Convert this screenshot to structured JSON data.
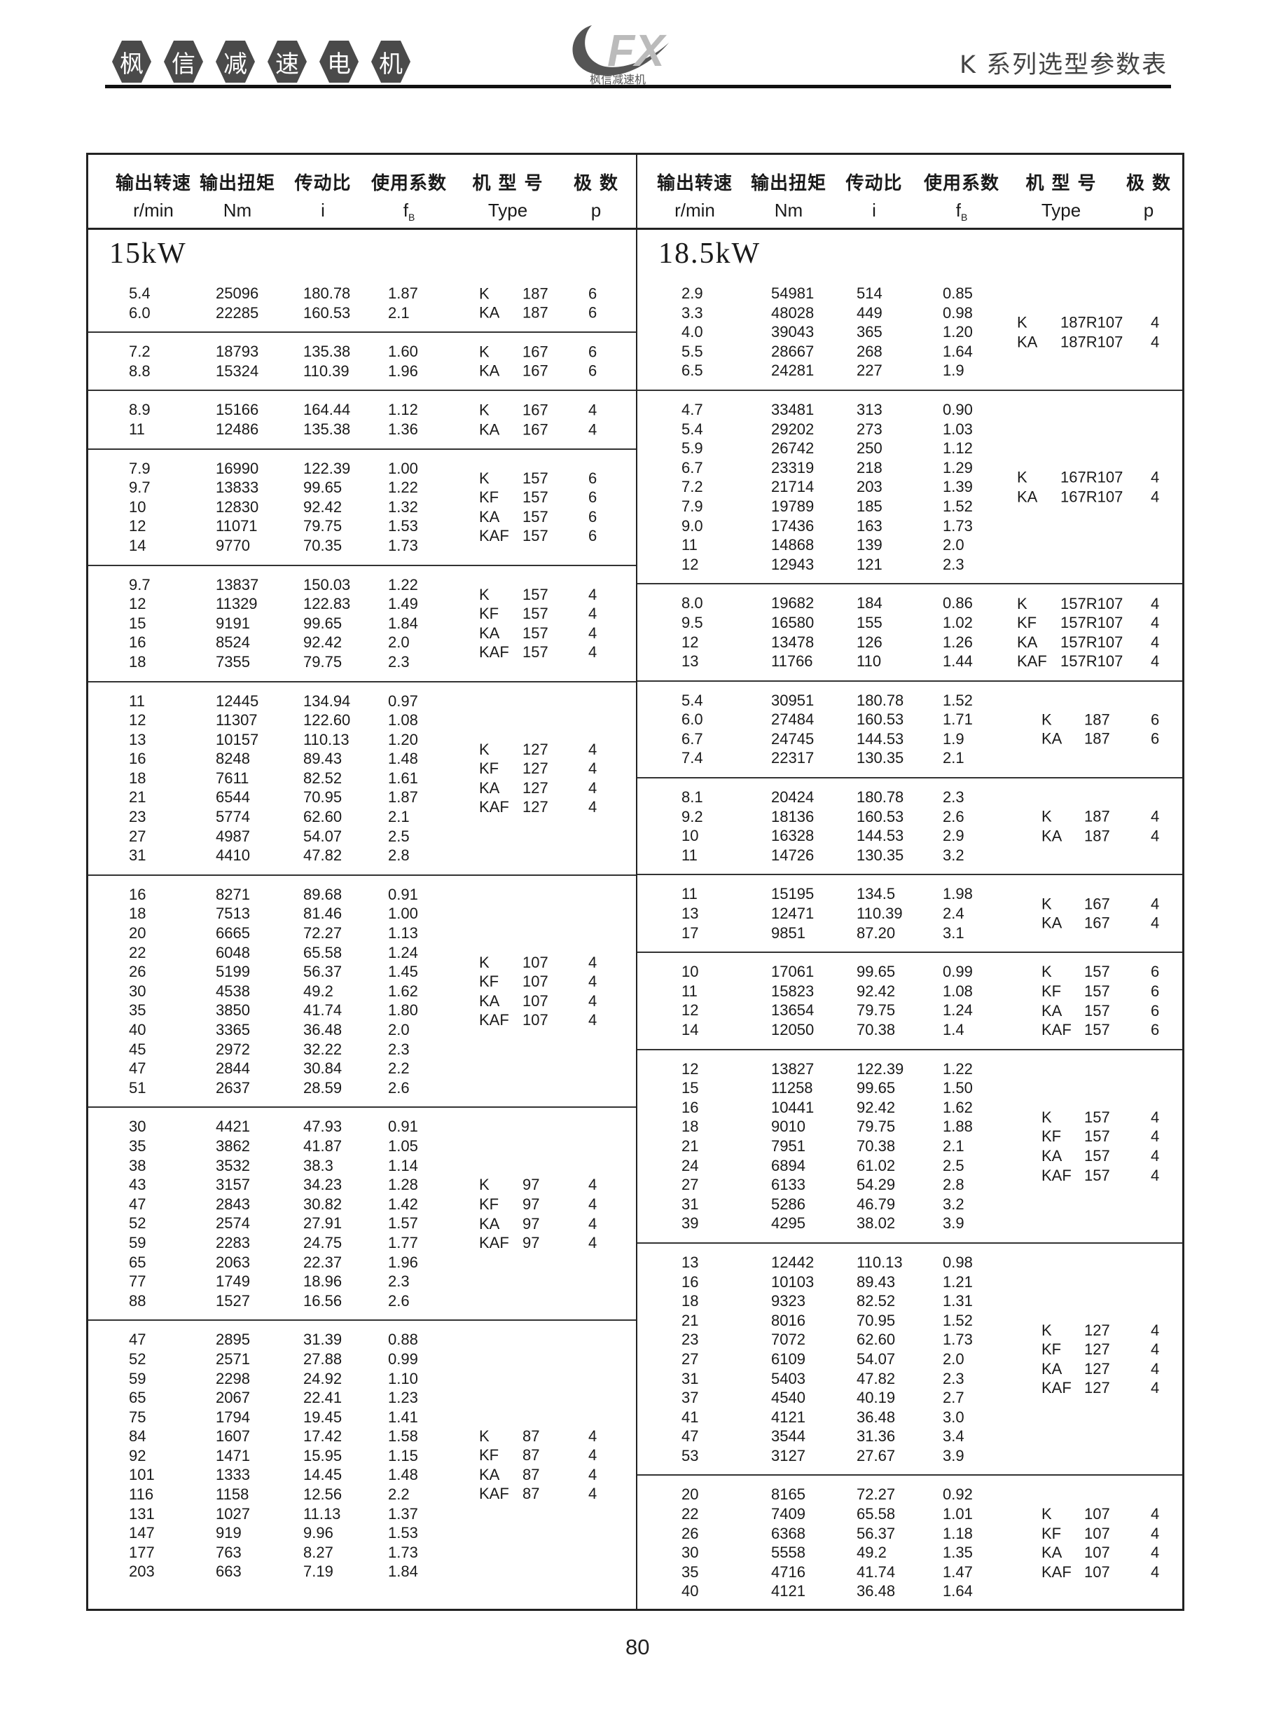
{
  "header": {
    "brand_chars": [
      "枫",
      "信",
      "减",
      "速",
      "电",
      "机"
    ],
    "logo_text": "FX",
    "logo_caption": "枫信减速机",
    "doc_title": "K 系列选型参数表"
  },
  "columns": {
    "cn": [
      "输出转速",
      "输出扭矩",
      "传动比",
      "使用系数",
      "机 型 号",
      "极 数"
    ],
    "units": [
      "r/min",
      "Nm",
      "i",
      "f",
      "Type",
      "p"
    ],
    "fb_sub": "B"
  },
  "left": {
    "title": "15kW",
    "groups": [
      {
        "rows": [
          [
            "5.4",
            "25096",
            "180.78",
            "1.87"
          ],
          [
            "6.0",
            "22285",
            "160.53",
            "2.1"
          ]
        ],
        "types": [
          [
            "K",
            "187",
            "6"
          ],
          [
            "KA",
            "187",
            "6"
          ]
        ]
      },
      {
        "rows": [
          [
            "7.2",
            "18793",
            "135.38",
            "1.60"
          ],
          [
            "8.8",
            "15324",
            "110.39",
            "1.96"
          ]
        ],
        "types": [
          [
            "K",
            "167",
            "6"
          ],
          [
            "KA",
            "167",
            "6"
          ]
        ]
      },
      {
        "rows": [
          [
            "8.9",
            "15166",
            "164.44",
            "1.12"
          ],
          [
            "11",
            "12486",
            "135.38",
            "1.36"
          ]
        ],
        "types": [
          [
            "K",
            "167",
            "4"
          ],
          [
            "KA",
            "167",
            "4"
          ]
        ]
      },
      {
        "rows": [
          [
            "7.9",
            "16990",
            "122.39",
            "1.00"
          ],
          [
            "9.7",
            "13833",
            "99.65",
            "1.22"
          ],
          [
            "10",
            "12830",
            "92.42",
            "1.32"
          ],
          [
            "12",
            "11071",
            "79.75",
            "1.53"
          ],
          [
            "14",
            "9770",
            "70.35",
            "1.73"
          ]
        ],
        "types": [
          [
            "K",
            "157",
            "6"
          ],
          [
            "KF",
            "157",
            "6"
          ],
          [
            "KA",
            "157",
            "6"
          ],
          [
            "KAF",
            "157",
            "6"
          ]
        ]
      },
      {
        "rows": [
          [
            "9.7",
            "13837",
            "150.03",
            "1.22"
          ],
          [
            "12",
            "11329",
            "122.83",
            "1.49"
          ],
          [
            "15",
            "9191",
            "99.65",
            "1.84"
          ],
          [
            "16",
            "8524",
            "92.42",
            "2.0"
          ],
          [
            "18",
            "7355",
            "79.75",
            "2.3"
          ]
        ],
        "types": [
          [
            "K",
            "157",
            "4"
          ],
          [
            "KF",
            "157",
            "4"
          ],
          [
            "KA",
            "157",
            "4"
          ],
          [
            "KAF",
            "157",
            "4"
          ]
        ]
      },
      {
        "rows": [
          [
            "11",
            "12445",
            "134.94",
            "0.97"
          ],
          [
            "12",
            "11307",
            "122.60",
            "1.08"
          ],
          [
            "13",
            "10157",
            "110.13",
            "1.20"
          ],
          [
            "16",
            "8248",
            "89.43",
            "1.48"
          ],
          [
            "18",
            "7611",
            "82.52",
            "1.61"
          ],
          [
            "21",
            "6544",
            "70.95",
            "1.87"
          ],
          [
            "23",
            "5774",
            "62.60",
            "2.1"
          ],
          [
            "27",
            "4987",
            "54.07",
            "2.5"
          ],
          [
            "31",
            "4410",
            "47.82",
            "2.8"
          ]
        ],
        "types": [
          [
            "K",
            "127",
            "4"
          ],
          [
            "KF",
            "127",
            "4"
          ],
          [
            "KA",
            "127",
            "4"
          ],
          [
            "KAF",
            "127",
            "4"
          ]
        ]
      },
      {
        "rows": [
          [
            "16",
            "8271",
            "89.68",
            "0.91"
          ],
          [
            "18",
            "7513",
            "81.46",
            "1.00"
          ],
          [
            "20",
            "6665",
            "72.27",
            "1.13"
          ],
          [
            "22",
            "6048",
            "65.58",
            "1.24"
          ],
          [
            "26",
            "5199",
            "56.37",
            "1.45"
          ],
          [
            "30",
            "4538",
            "49.2",
            "1.62"
          ],
          [
            "35",
            "3850",
            "41.74",
            "1.80"
          ],
          [
            "40",
            "3365",
            "36.48",
            "2.0"
          ],
          [
            "45",
            "2972",
            "32.22",
            "2.3"
          ],
          [
            "47",
            "2844",
            "30.84",
            "2.2"
          ],
          [
            "51",
            "2637",
            "28.59",
            "2.6"
          ]
        ],
        "types": [
          [
            "K",
            "107",
            "4"
          ],
          [
            "KF",
            "107",
            "4"
          ],
          [
            "KA",
            "107",
            "4"
          ],
          [
            "KAF",
            "107",
            "4"
          ]
        ]
      },
      {
        "rows": [
          [
            "30",
            "4421",
            "47.93",
            "0.91"
          ],
          [
            "35",
            "3862",
            "41.87",
            "1.05"
          ],
          [
            "38",
            "3532",
            "38.3",
            "1.14"
          ],
          [
            "43",
            "3157",
            "34.23",
            "1.28"
          ],
          [
            "47",
            "2843",
            "30.82",
            "1.42"
          ],
          [
            "52",
            "2574",
            "27.91",
            "1.57"
          ],
          [
            "59",
            "2283",
            "24.75",
            "1.77"
          ],
          [
            "65",
            "2063",
            "22.37",
            "1.96"
          ],
          [
            "77",
            "1749",
            "18.96",
            "2.3"
          ],
          [
            "88",
            "1527",
            "16.56",
            "2.6"
          ]
        ],
        "types": [
          [
            "K",
            "97",
            "4"
          ],
          [
            "KF",
            "97",
            "4"
          ],
          [
            "KA",
            "97",
            "4"
          ],
          [
            "KAF",
            "97",
            "4"
          ]
        ]
      },
      {
        "rows": [
          [
            "47",
            "2895",
            "31.39",
            "0.88"
          ],
          [
            "52",
            "2571",
            "27.88",
            "0.99"
          ],
          [
            "59",
            "2298",
            "24.92",
            "1.10"
          ],
          [
            "65",
            "2067",
            "22.41",
            "1.23"
          ],
          [
            "75",
            "1794",
            "19.45",
            "1.41"
          ],
          [
            "84",
            "1607",
            "17.42",
            "1.58"
          ],
          [
            "92",
            "1471",
            "15.95",
            "1.15"
          ],
          [
            "101",
            "1333",
            "14.45",
            "1.48"
          ],
          [
            "116",
            "1158",
            "12.56",
            "2.2"
          ],
          [
            "131",
            "1027",
            "11.13",
            "1.37"
          ],
          [
            "147",
            "919",
            "9.96",
            "1.53"
          ],
          [
            "177",
            "763",
            "8.27",
            "1.73"
          ],
          [
            "203",
            "663",
            "7.19",
            "1.84"
          ]
        ],
        "types": [
          [
            "K",
            "87",
            "4"
          ],
          [
            "KF",
            "87",
            "4"
          ],
          [
            "KA",
            "87",
            "4"
          ],
          [
            "KAF",
            "87",
            "4"
          ]
        ]
      }
    ]
  },
  "right": {
    "title": "18.5kW",
    "groups": [
      {
        "rows": [
          [
            "2.9",
            "54981",
            "514",
            "0.85"
          ],
          [
            "3.3",
            "48028",
            "449",
            "0.98"
          ],
          [
            "4.0",
            "39043",
            "365",
            "1.20"
          ],
          [
            "5.5",
            "28667",
            "268",
            "1.64"
          ],
          [
            "6.5",
            "24281",
            "227",
            "1.9"
          ]
        ],
        "types": [
          [
            "K",
            "187R107",
            "4"
          ],
          [
            "KA",
            "187R107",
            "4"
          ]
        ]
      },
      {
        "rows": [
          [
            "4.7",
            "33481",
            "313",
            "0.90"
          ],
          [
            "5.4",
            "29202",
            "273",
            "1.03"
          ],
          [
            "5.9",
            "26742",
            "250",
            "1.12"
          ],
          [
            "6.7",
            "23319",
            "218",
            "1.29"
          ],
          [
            "7.2",
            "21714",
            "203",
            "1.39"
          ],
          [
            "7.9",
            "19789",
            "185",
            "1.52"
          ],
          [
            "9.0",
            "17436",
            "163",
            "1.73"
          ],
          [
            "11",
            "14868",
            "139",
            "2.0"
          ],
          [
            "12",
            "12943",
            "121",
            "2.3"
          ]
        ],
        "types": [
          [
            "K",
            "167R107",
            "4"
          ],
          [
            "KA",
            "167R107",
            "4"
          ]
        ]
      },
      {
        "rows": [
          [
            "8.0",
            "19682",
            "184",
            "0.86"
          ],
          [
            "9.5",
            "16580",
            "155",
            "1.02"
          ],
          [
            "12",
            "13478",
            "126",
            "1.26"
          ],
          [
            "13",
            "11766",
            "110",
            "1.44"
          ]
        ],
        "types": [
          [
            "K",
            "157R107",
            "4"
          ],
          [
            "KF",
            "157R107",
            "4"
          ],
          [
            "KA",
            "157R107",
            "4"
          ],
          [
            "KAF",
            "157R107",
            "4"
          ]
        ]
      },
      {
        "rows": [
          [
            "5.4",
            "30951",
            "180.78",
            "1.52"
          ],
          [
            "6.0",
            "27484",
            "160.53",
            "1.71"
          ],
          [
            "6.7",
            "24745",
            "144.53",
            "1.9"
          ],
          [
            "7.4",
            "22317",
            "130.35",
            "2.1"
          ]
        ],
        "types": [
          [
            "K",
            "187",
            "6"
          ],
          [
            "KA",
            "187",
            "6"
          ]
        ]
      },
      {
        "rows": [
          [
            "8.1",
            "20424",
            "180.78",
            "2.3"
          ],
          [
            "9.2",
            "18136",
            "160.53",
            "2.6"
          ],
          [
            "10",
            "16328",
            "144.53",
            "2.9"
          ],
          [
            "11",
            "14726",
            "130.35",
            "3.2"
          ]
        ],
        "types": [
          [
            "K",
            "187",
            "4"
          ],
          [
            "KA",
            "187",
            "4"
          ]
        ]
      },
      {
        "rows": [
          [
            "11",
            "15195",
            "134.5",
            "1.98"
          ],
          [
            "13",
            "12471",
            "110.39",
            "2.4"
          ],
          [
            "17",
            "9851",
            "87.20",
            "3.1"
          ]
        ],
        "types": [
          [
            "K",
            "167",
            "4"
          ],
          [
            "KA",
            "167",
            "4"
          ]
        ]
      },
      {
        "rows": [
          [
            "10",
            "17061",
            "99.65",
            "0.99"
          ],
          [
            "11",
            "15823",
            "92.42",
            "1.08"
          ],
          [
            "12",
            "13654",
            "79.75",
            "1.24"
          ],
          [
            "14",
            "12050",
            "70.38",
            "1.4"
          ]
        ],
        "types": [
          [
            "K",
            "157",
            "6"
          ],
          [
            "KF",
            "157",
            "6"
          ],
          [
            "KA",
            "157",
            "6"
          ],
          [
            "KAF",
            "157",
            "6"
          ]
        ]
      },
      {
        "rows": [
          [
            "12",
            "13827",
            "122.39",
            "1.22"
          ],
          [
            "15",
            "11258",
            "99.65",
            "1.50"
          ],
          [
            "16",
            "10441",
            "92.42",
            "1.62"
          ],
          [
            "18",
            "9010",
            "79.75",
            "1.88"
          ],
          [
            "21",
            "7951",
            "70.38",
            "2.1"
          ],
          [
            "24",
            "6894",
            "61.02",
            "2.5"
          ],
          [
            "27",
            "6133",
            "54.29",
            "2.8"
          ],
          [
            "31",
            "5286",
            "46.79",
            "3.2"
          ],
          [
            "39",
            "4295",
            "38.02",
            "3.9"
          ]
        ],
        "types": [
          [
            "K",
            "157",
            "4"
          ],
          [
            "KF",
            "157",
            "4"
          ],
          [
            "KA",
            "157",
            "4"
          ],
          [
            "KAF",
            "157",
            "4"
          ]
        ]
      },
      {
        "rows": [
          [
            "13",
            "12442",
            "110.13",
            "0.98"
          ],
          [
            "16",
            "10103",
            "89.43",
            "1.21"
          ],
          [
            "18",
            "9323",
            "82.52",
            "1.31"
          ],
          [
            "21",
            "8016",
            "70.95",
            "1.52"
          ],
          [
            "23",
            "7072",
            "62.60",
            "1.73"
          ],
          [
            "27",
            "6109",
            "54.07",
            "2.0"
          ],
          [
            "31",
            "5403",
            "47.82",
            "2.3"
          ],
          [
            "37",
            "4540",
            "40.19",
            "2.7"
          ],
          [
            "41",
            "4121",
            "36.48",
            "3.0"
          ],
          [
            "47",
            "3544",
            "31.36",
            "3.4"
          ],
          [
            "53",
            "3127",
            "27.67",
            "3.9"
          ]
        ],
        "types": [
          [
            "K",
            "127",
            "4"
          ],
          [
            "KF",
            "127",
            "4"
          ],
          [
            "KA",
            "127",
            "4"
          ],
          [
            "KAF",
            "127",
            "4"
          ]
        ]
      },
      {
        "rows": [
          [
            "20",
            "8165",
            "72.27",
            "0.92"
          ],
          [
            "22",
            "7409",
            "65.58",
            "1.01"
          ],
          [
            "26",
            "6368",
            "56.37",
            "1.18"
          ],
          [
            "30",
            "5558",
            "49.2",
            "1.35"
          ],
          [
            "35",
            "4716",
            "41.74",
            "1.47"
          ],
          [
            "40",
            "4121",
            "36.48",
            "1.64"
          ]
        ],
        "types": [
          [
            "K",
            "107",
            "4"
          ],
          [
            "KF",
            "107",
            "4"
          ],
          [
            "KA",
            "107",
            "4"
          ],
          [
            "KAF",
            "107",
            "4"
          ]
        ]
      }
    ]
  },
  "footer": {
    "page_number": "80"
  }
}
